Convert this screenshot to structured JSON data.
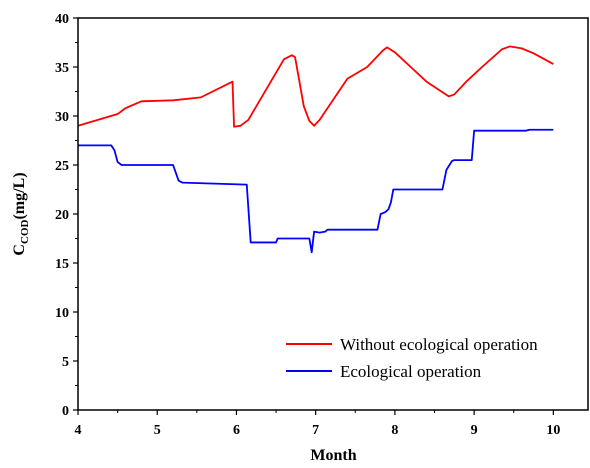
{
  "chart_data": {
    "type": "line",
    "title": "",
    "xlabel": "Month",
    "ylabel_main": "C",
    "ylabel_sub": "COD",
    "ylabel_unit": "(mg/L)",
    "xlim": [
      4,
      10.45
    ],
    "ylim": [
      0,
      40
    ],
    "x_ticks": [
      4,
      5,
      6,
      7,
      8,
      9,
      10
    ],
    "x_tick_labels": [
      "4",
      "5",
      "6",
      "7",
      "8",
      "9",
      "10"
    ],
    "y_ticks": [
      0,
      5,
      10,
      15,
      20,
      25,
      30,
      35,
      40
    ],
    "y_tick_labels": [
      "0",
      "5",
      "10",
      "15",
      "20",
      "25",
      "30",
      "35",
      "40"
    ],
    "grid": false,
    "legend_position": "bottom-right",
    "series": [
      {
        "name": "Without ecological operation",
        "color": "#ff0000",
        "x": [
          4.0,
          4.5,
          4.6,
          4.8,
          5.2,
          5.55,
          5.95,
          5.97,
          6.05,
          6.15,
          6.6,
          6.7,
          6.74,
          6.85,
          6.92,
          6.98,
          7.05,
          7.4,
          7.65,
          7.85,
          7.9,
          8.0,
          8.2,
          8.4,
          8.68,
          8.75,
          8.9,
          9.1,
          9.35,
          9.45,
          9.6,
          9.75,
          10.0
        ],
        "y": [
          29.0,
          30.2,
          30.8,
          31.5,
          31.6,
          31.9,
          33.5,
          28.9,
          29.0,
          29.6,
          35.8,
          36.2,
          36.0,
          31.0,
          29.5,
          29.0,
          29.6,
          33.8,
          35.0,
          36.7,
          37.0,
          36.5,
          35.0,
          33.5,
          32.0,
          32.2,
          33.5,
          35.0,
          36.8,
          37.1,
          36.9,
          36.4,
          35.3
        ]
      },
      {
        "name": "Ecological operation",
        "color": "#0000ff",
        "x": [
          4.0,
          4.42,
          4.46,
          4.5,
          4.55,
          5.2,
          5.27,
          5.32,
          6.13,
          6.18,
          6.5,
          6.52,
          6.92,
          6.95,
          6.98,
          7.05,
          7.12,
          7.15,
          7.78,
          7.82,
          7.88,
          7.92,
          7.95,
          7.98,
          8.6,
          8.65,
          8.72,
          8.75,
          8.97,
          9.0,
          9.65,
          9.7,
          10.0
        ],
        "y": [
          27.0,
          27.0,
          26.5,
          25.3,
          25.0,
          25.0,
          23.4,
          23.2,
          23.0,
          17.1,
          17.1,
          17.5,
          17.5,
          16.1,
          18.2,
          18.1,
          18.2,
          18.4,
          18.4,
          20.0,
          20.2,
          20.5,
          21.2,
          22.5,
          22.5,
          24.5,
          25.4,
          25.5,
          25.5,
          28.5,
          28.5,
          28.6,
          28.6
        ]
      }
    ]
  }
}
